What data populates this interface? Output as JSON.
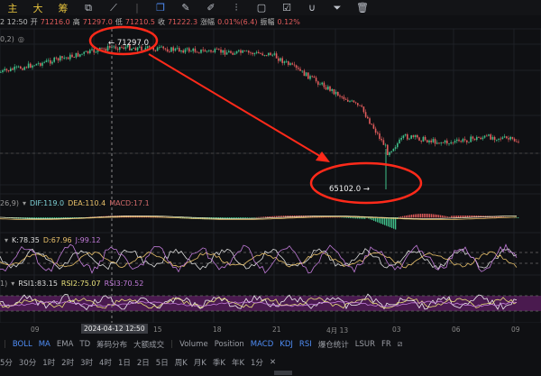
{
  "toolbar": {
    "labels": [
      "主",
      "大",
      "筹"
    ],
    "tools": [
      "crop-icon",
      "pencil-line-icon",
      "square-select-icon",
      "pen-icon",
      "brush-icon",
      "fibonacci-icon",
      "lock-icon",
      "note-icon",
      "magnet-icon",
      "filter-icon",
      "trash-icon"
    ]
  },
  "info": {
    "time": "2 12:50",
    "open_label": "开",
    "open": "71216.0",
    "high_label": "高",
    "high": "71297.0",
    "low_label": "低",
    "low": "71210.5",
    "close_label": "收",
    "close": "71222.3",
    "chg_label": "涨幅",
    "chg": "0.01%(6.4)",
    "amp_label": "振幅",
    "amp": "0.12%"
  },
  "main": {
    "ma_params": "0,2)",
    "high_marker": "← 71297.0",
    "low_marker": "65102.0 →"
  },
  "macd": {
    "params": "26,9)",
    "dif": "DIF:119.0",
    "dea": "DEA:110.4",
    "macd": "MACD:17.1"
  },
  "kdj": {
    "k": "K:78.35",
    "d": "D:67.96",
    "j": "J:99.12"
  },
  "rsi": {
    "params": "1)",
    "rsi1": "RSI1:83.15",
    "rsi2": "RSI2:75.07",
    "rsi3": "RSI3:70.52"
  },
  "xaxis": {
    "ticks": [
      "09",
      "15",
      "18",
      "21",
      "4月 13",
      "03",
      "06",
      "09"
    ],
    "crosshair": "2024-04-12 12:50"
  },
  "indicators": {
    "items": [
      {
        "label": "BOLL",
        "on": true
      },
      {
        "label": "MA",
        "on": true
      },
      {
        "label": "EMA",
        "on": false
      },
      {
        "label": "TD",
        "on": false
      },
      {
        "label": "筹码分布",
        "on": false
      },
      {
        "label": "大额成交",
        "on": false
      },
      {
        "label": "Volume",
        "on": false
      },
      {
        "label": "Position",
        "on": false
      },
      {
        "label": "MACD",
        "on": true
      },
      {
        "label": "KDJ",
        "on": true
      },
      {
        "label": "RSI",
        "on": true
      },
      {
        "label": "爆仓统计",
        "on": false
      },
      {
        "label": "LSUR",
        "on": false
      },
      {
        "label": "FR",
        "on": false
      }
    ]
  },
  "timeframes": [
    "5分",
    "30分",
    "1时",
    "2时",
    "3时",
    "4时",
    "1日",
    "2日",
    "5日",
    "周K",
    "月K",
    "季K",
    "年K",
    "1分"
  ],
  "colors": {
    "up": "#3fbf8a",
    "down": "#e25c5c",
    "annotation": "#ff2a1a",
    "rsi_band": "#4a1a4f"
  }
}
